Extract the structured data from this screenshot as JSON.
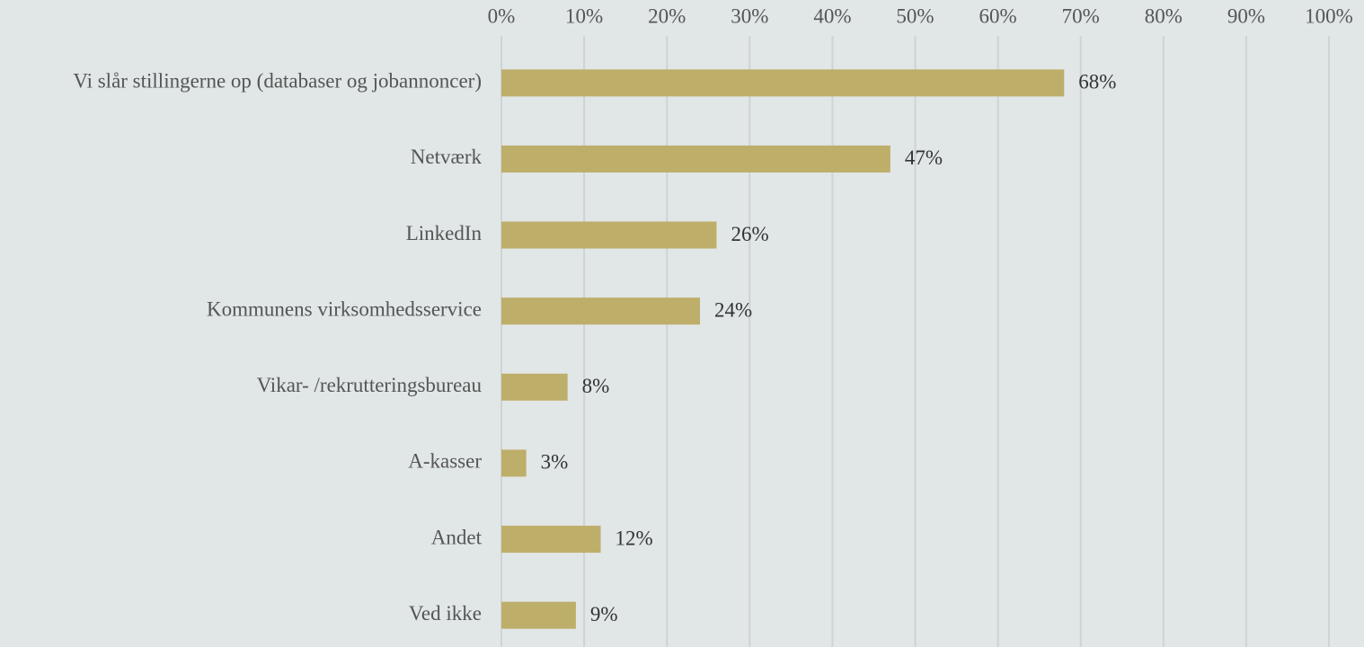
{
  "chart_data": {
    "type": "bar",
    "orientation": "horizontal",
    "categories": [
      "Vi slår stillingerne op (databaser og jobannoncer)",
      "Netværk",
      "LinkedIn",
      "Kommunens virksomhedsservice",
      "Vikar- /rekrutteringsbureau",
      "A-kasser",
      "Andet",
      "Ved ikke"
    ],
    "values": [
      68,
      47,
      26,
      24,
      8,
      3,
      12,
      9
    ],
    "value_labels": [
      "68%",
      "47%",
      "26%",
      "24%",
      "8%",
      "3%",
      "12%",
      "9%"
    ],
    "color": "#bdae6a",
    "xlim": [
      0,
      100
    ],
    "xticks": [
      {
        "value": 0,
        "label": "0%"
      },
      {
        "value": 10,
        "label": "10%"
      },
      {
        "value": 20,
        "label": "20%"
      },
      {
        "value": 30,
        "label": "30%"
      },
      {
        "value": 40,
        "label": "40%"
      },
      {
        "value": 50,
        "label": "50%"
      },
      {
        "value": 60,
        "label": "60%"
      },
      {
        "value": 70,
        "label": "70%"
      },
      {
        "value": 80,
        "label": "80%"
      },
      {
        "value": 90,
        "label": "90%"
      },
      {
        "value": 100,
        "label": "100%"
      }
    ],
    "grid": true
  }
}
